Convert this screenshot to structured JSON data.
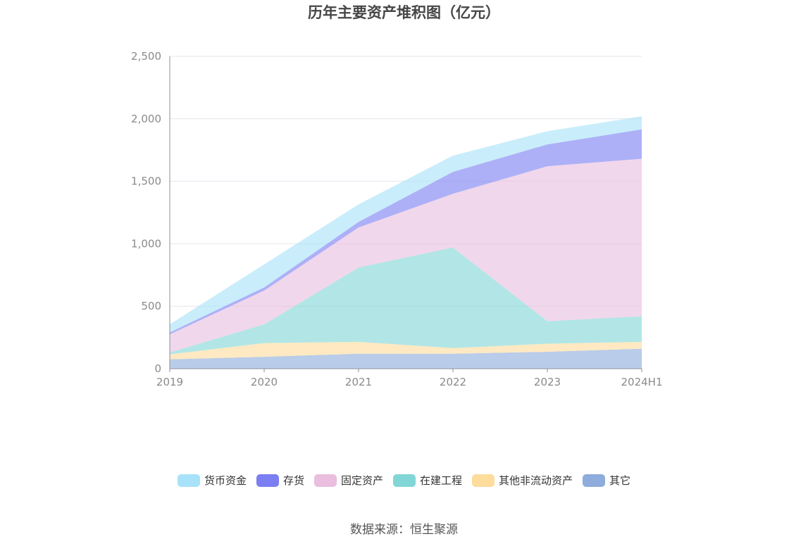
{
  "chart_data": {
    "type": "area",
    "stacked": true,
    "title": "历年主要资产堆积图（亿元）",
    "categories": [
      "2019",
      "2020",
      "2021",
      "2022",
      "2023",
      "2024H1"
    ],
    "ylim": [
      0,
      2500
    ],
    "yticks": [
      0,
      500,
      1000,
      1500,
      2000,
      2500
    ],
    "ytick_labels": [
      "0",
      "500",
      "1,000",
      "1,500",
      "2,000",
      "2,500"
    ],
    "grid": true,
    "legend_position": "bottom",
    "series": [
      {
        "name": "其它",
        "color": "#8eacdc",
        "values": [
          75,
          95,
          120,
          120,
          135,
          160
        ]
      },
      {
        "name": "其他非流动资产",
        "color": "#fddc9c",
        "values": [
          40,
          110,
          95,
          45,
          65,
          55
        ]
      },
      {
        "name": "在建工程",
        "color": "#82d6d7",
        "values": [
          15,
          150,
          595,
          805,
          180,
          205
        ]
      },
      {
        "name": "固定资产",
        "color": "#e9bede",
        "values": [
          145,
          270,
          320,
          430,
          1240,
          1260
        ]
      },
      {
        "name": "存货",
        "color": "#7b7ff2",
        "values": [
          15,
          25,
          45,
          175,
          175,
          235
        ]
      },
      {
        "name": "货币资金",
        "color": "#a8e2f8",
        "values": [
          65,
          185,
          140,
          130,
          105,
          105
        ]
      }
    ]
  },
  "legend": {
    "items": [
      {
        "label": "货币资金",
        "color": "#a8e2f8"
      },
      {
        "label": "存货",
        "color": "#7b7ff2"
      },
      {
        "label": "固定资产",
        "color": "#e9bede"
      },
      {
        "label": "在建工程",
        "color": "#82d6d7"
      },
      {
        "label": "其他非流动资产",
        "color": "#fddc9c"
      },
      {
        "label": "其它",
        "color": "#8eacdc"
      }
    ]
  },
  "source_text": "数据来源：恒生聚源"
}
